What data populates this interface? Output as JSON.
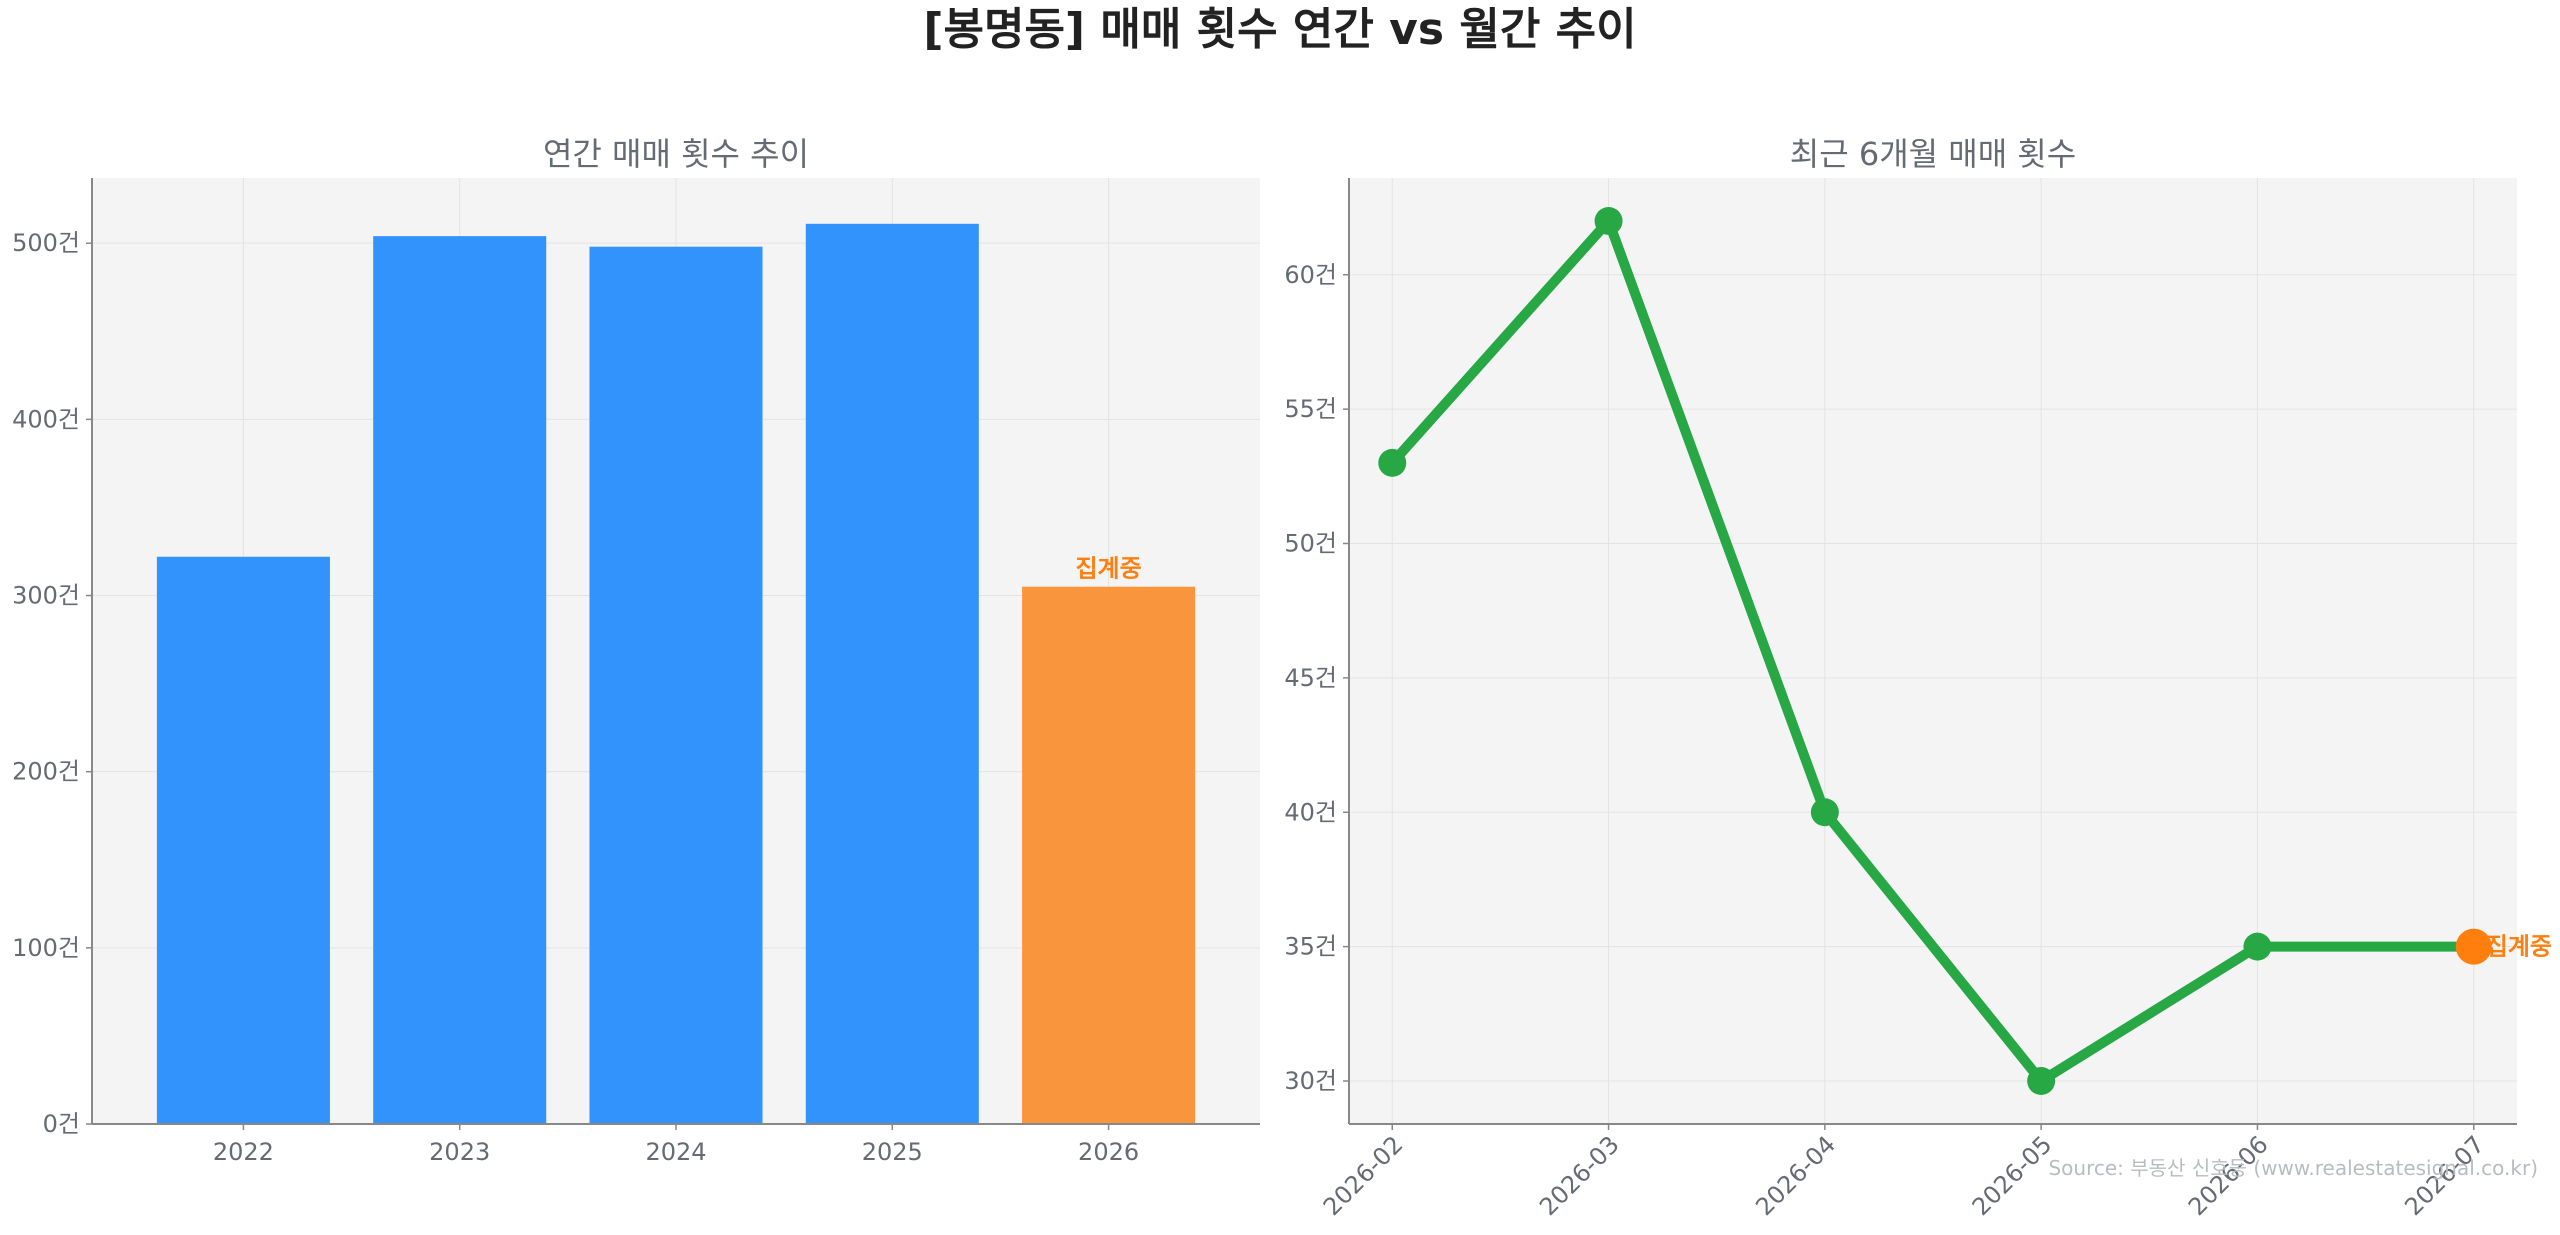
{
  "title": "[봉명동] 매매 횟수 연간 vs 월간 추이",
  "source": "Source: 부동산 신호등 (www.realestatesignal.co.kr)",
  "colors": {
    "bar": "#3293fc",
    "bar_pending": "#f9963d",
    "line": "#28a745",
    "marker_pending": "#ff7f0e",
    "panel_bg": "#f4f4f4"
  },
  "chart_data": [
    {
      "type": "bar",
      "title": "연간 매매 횟수 추이",
      "categories": [
        "2022",
        "2023",
        "2024",
        "2025",
        "2026"
      ],
      "values": [
        322,
        504,
        498,
        511,
        305
      ],
      "pending_index": 4,
      "pending_label": "집계중",
      "ylim": [
        0,
        537
      ],
      "yticks": [
        0,
        100,
        200,
        300,
        400,
        500
      ],
      "ytick_labels": [
        "0건",
        "100건",
        "200건",
        "300건",
        "400건",
        "500건"
      ],
      "grid": true
    },
    {
      "type": "line",
      "title": "최근 6개월 매매 횟수",
      "x": [
        "2026-02",
        "2026-03",
        "2026-04",
        "2026-05",
        "2026-06",
        "2026-07"
      ],
      "values": [
        53,
        62,
        40,
        30,
        35,
        35
      ],
      "pending_index": 5,
      "pending_label": "집계중",
      "ylim": [
        28.4,
        63.6
      ],
      "yticks": [
        30,
        35,
        40,
        45,
        50,
        55,
        60
      ],
      "ytick_labels": [
        "30건",
        "35건",
        "40건",
        "45건",
        "50건",
        "55건",
        "60건"
      ],
      "grid": true
    }
  ]
}
